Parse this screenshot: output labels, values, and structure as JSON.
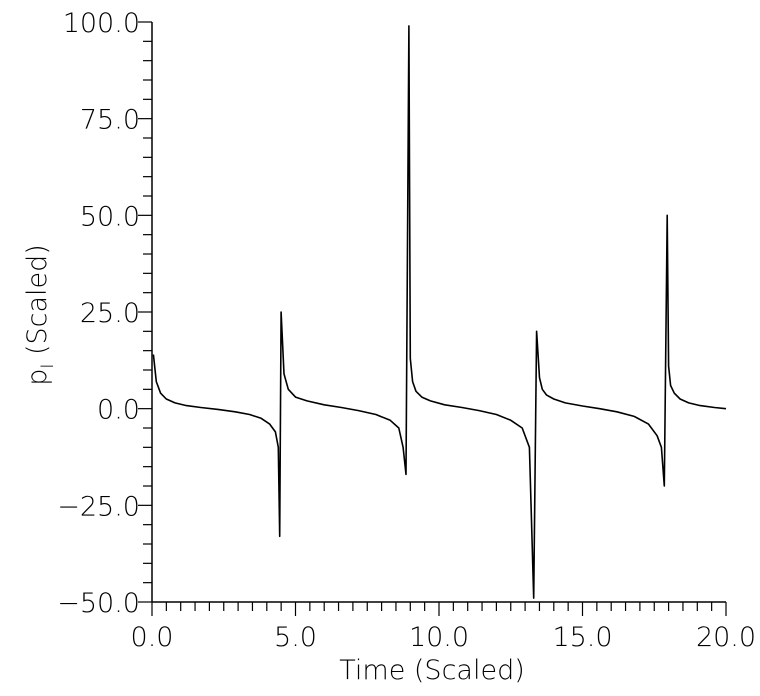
{
  "chart_data": {
    "type": "line",
    "xlabel": "Time  (Scaled)",
    "ylabel": "p (Scaled)",
    "ylabel_subscript": "I",
    "xlim": [
      0,
      20
    ],
    "ylim": [
      -50,
      100
    ],
    "x_ticks": [
      0,
      5,
      10,
      15,
      20
    ],
    "x_tick_labels": [
      "0.0",
      "5.0",
      "10.0",
      "15.0",
      "20.0"
    ],
    "y_ticks": [
      -50,
      -25,
      0,
      25,
      50,
      75,
      100
    ],
    "y_tick_labels": [
      "−50.0",
      "−25.0",
      "0.0",
      "25.0",
      "50.0",
      "75.0",
      "100.0"
    ],
    "x_minor_step": 0.5,
    "y_minor_step": 5,
    "grid": false,
    "series": [
      {
        "x": [
          0.05,
          0.15,
          0.3,
          0.5,
          0.8,
          1.2,
          1.7,
          2.3,
          2.9,
          3.4,
          3.8,
          4.1,
          4.3,
          4.4,
          4.45,
          4.5,
          4.6,
          4.75,
          5.0,
          5.4,
          6.0,
          6.6,
          7.2,
          7.8,
          8.3,
          8.6,
          8.75,
          8.85,
          8.95,
          9.0,
          9.08,
          9.2,
          9.4,
          9.7,
          10.2,
          10.8,
          11.4,
          12.0,
          12.5,
          12.9,
          13.15,
          13.3,
          13.4,
          13.5,
          13.6,
          13.75,
          14.0,
          14.4,
          15.0,
          15.6,
          16.2,
          16.8,
          17.3,
          17.6,
          17.75,
          17.85,
          17.95,
          18.0,
          18.07,
          18.2,
          18.4,
          18.7,
          19.1,
          19.6,
          20.0
        ],
        "y": [
          14,
          7,
          4,
          2.5,
          1.5,
          0.8,
          0.3,
          -0.2,
          -0.8,
          -1.5,
          -2.5,
          -4,
          -6,
          -10,
          -33,
          25,
          9,
          5,
          3,
          2,
          1,
          0.3,
          -0.5,
          -1.5,
          -3,
          -5,
          -10,
          -17,
          99,
          13,
          7,
          4.5,
          3,
          2,
          1,
          0.3,
          -0.5,
          -1.5,
          -3,
          -5,
          -10,
          -49,
          20,
          8,
          5,
          3.5,
          2.5,
          1.5,
          0.7,
          0,
          -0.8,
          -2,
          -4,
          -7,
          -10,
          -20,
          50,
          11,
          6,
          4,
          2.5,
          1.5,
          0.8,
          0.3,
          0
        ]
      }
    ]
  }
}
